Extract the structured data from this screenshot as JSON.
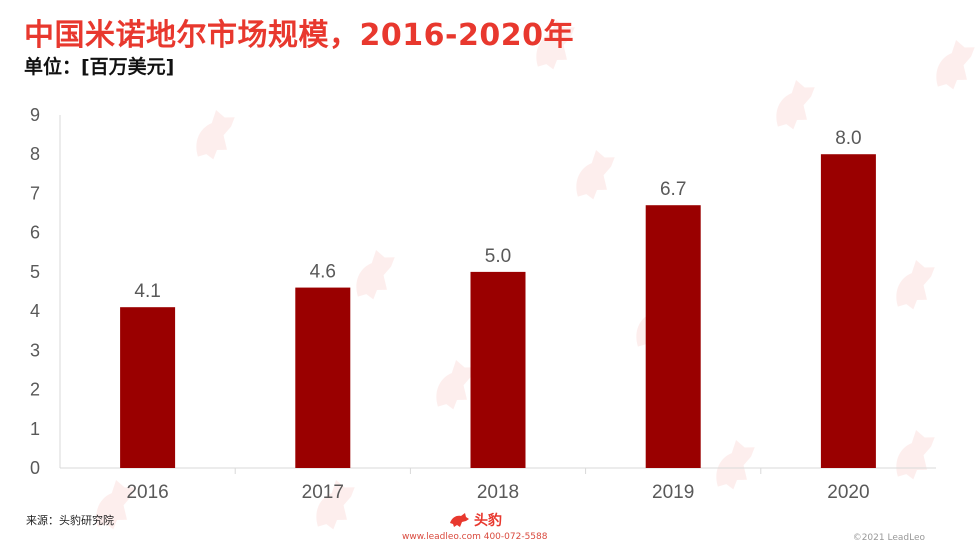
{
  "header": {
    "title": "中国米诺地尔市场规模，2016-2020年",
    "unit": "单位：[百万美元]"
  },
  "footer": {
    "source": "来源：头豹研究院",
    "brand": "头豹",
    "contact": "www.leadleo.com  400-072-5588",
    "copyright": "©2021 LeadLeo"
  },
  "colors": {
    "title": "#e8382e",
    "bar": "#9a0000",
    "axis_text": "#595959",
    "axis_line": "#d9d9d9"
  },
  "watermark_icon": "leopard-logo-icon",
  "chart_data": {
    "type": "bar",
    "categories": [
      "2016",
      "2017",
      "2018",
      "2019",
      "2020"
    ],
    "values": [
      4.1,
      4.6,
      5.0,
      6.7,
      8.0
    ],
    "data_labels": [
      "4.1",
      "4.6",
      "5.0",
      "6.7",
      "8.0"
    ],
    "ylim": [
      0,
      9
    ],
    "yticks": [
      0,
      1,
      2,
      3,
      4,
      5,
      6,
      7,
      8,
      9
    ],
    "grid": false,
    "legend": "none",
    "title": "中国米诺地尔市场规模，2016-2020年",
    "xlabel": "",
    "ylabel": ""
  }
}
